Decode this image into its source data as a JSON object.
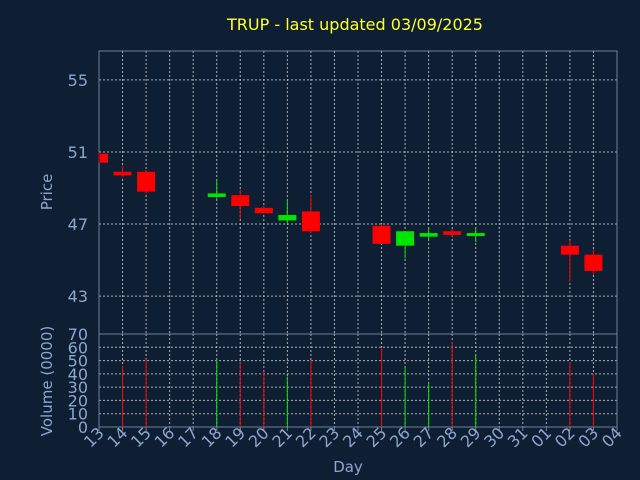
{
  "chart_data": {
    "type": "candlestick",
    "title": "TRUP - last updated 03/09/2025",
    "xlabel": "Day",
    "price_panel": {
      "ylabel": "Price",
      "yticks": [
        43,
        47,
        51,
        55
      ],
      "ylim": [
        40.9,
        56.6
      ]
    },
    "volume_panel": {
      "ylabel": "Volume (0000)",
      "yticks": [
        0,
        10,
        20,
        30,
        40,
        50,
        60,
        70
      ],
      "ylim": [
        0,
        70
      ]
    },
    "x_labels": [
      "13",
      "14",
      "15",
      "16",
      "17",
      "18",
      "19",
      "20",
      "21",
      "22",
      "23",
      "24",
      "25",
      "26",
      "27",
      "28",
      "29",
      "30",
      "31",
      "01",
      "02",
      "03",
      "04"
    ],
    "candles": [
      {
        "day": "13",
        "open": 50.9,
        "high": 51.0,
        "low": 50.4,
        "close": 50.4,
        "volume": 0
      },
      {
        "day": "14",
        "open": 49.9,
        "high": 50.2,
        "low": 49.6,
        "close": 49.7,
        "volume": 46
      },
      {
        "day": "15",
        "open": 49.9,
        "high": 50.0,
        "low": 48.7,
        "close": 48.8,
        "volume": 51
      },
      {
        "day": "18",
        "open": 48.5,
        "high": 49.5,
        "low": 48.4,
        "close": 48.7,
        "volume": 51
      },
      {
        "day": "19",
        "open": 48.6,
        "high": 48.9,
        "low": 47.3,
        "close": 48.0,
        "volume": 49
      },
      {
        "day": "20",
        "open": 47.9,
        "high": 48.0,
        "low": 47.6,
        "close": 47.6,
        "volume": 42
      },
      {
        "day": "21",
        "open": 47.2,
        "high": 48.3,
        "low": 47.0,
        "close": 47.5,
        "volume": 38
      },
      {
        "day": "22",
        "open": 47.7,
        "high": 48.6,
        "low": 46.5,
        "close": 46.6,
        "volume": 50
      },
      {
        "day": "25",
        "open": 46.9,
        "high": 47.0,
        "low": 45.9,
        "close": 45.9,
        "volume": 60
      },
      {
        "day": "26",
        "open": 45.8,
        "high": 46.6,
        "low": 45.1,
        "close": 46.6,
        "volume": 45
      },
      {
        "day": "27",
        "open": 46.3,
        "high": 46.8,
        "low": 46.1,
        "close": 46.5,
        "volume": 34
      },
      {
        "day": "28",
        "open": 46.6,
        "high": 46.7,
        "low": 46.3,
        "close": 46.4,
        "volume": 64
      },
      {
        "day": "29",
        "open": 46.5,
        "high": 46.8,
        "low": 46.0,
        "close": 46.5,
        "volume": 55
      },
      {
        "day": "02",
        "open": 45.8,
        "high": 46.1,
        "low": 43.8,
        "close": 45.3,
        "volume": 49
      },
      {
        "day": "03",
        "open": 45.3,
        "high": 45.6,
        "low": 44.2,
        "close": 44.4,
        "volume": 40
      }
    ],
    "colors": {
      "background": "#0f1f33",
      "up": "#00e600",
      "down": "#ff0000",
      "title": "#ffff33",
      "axis_text": "#8da6cc",
      "axis": "#6f7f99",
      "grid": "#c8c8c8"
    },
    "grid": true,
    "legend": "none"
  }
}
